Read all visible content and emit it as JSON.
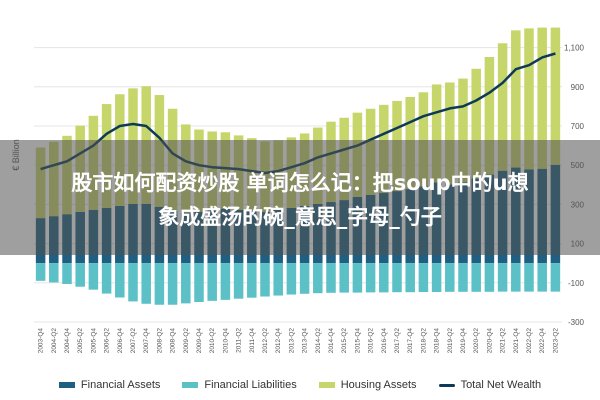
{
  "overlay": {
    "line1": "股市如何配资炒股 单词怎么记：把soup中的u想",
    "line2": "象成盛汤的碗_意思_字母_勺子"
  },
  "colors": {
    "financial_assets": "#1f5f82",
    "financial_liabilities": "#5cc0c7",
    "housing_assets": "#c7d66b",
    "total_net_wealth": "#0f3a57",
    "grid": "#e5e5e5",
    "text": "#555555"
  },
  "chart_data": {
    "type": "bar",
    "ylabel": "€ Billion",
    "ylim": [
      -300,
      1200
    ],
    "yticks": [
      -300,
      -100,
      100,
      300,
      500,
      700,
      900,
      1100
    ],
    "ytick_labels": [
      "-300",
      "-100",
      "100",
      "300",
      "500",
      "700",
      "900",
      "1,100"
    ],
    "xtick_labels": [
      "2003-Q4",
      "2004-Q2",
      "2004-Q4",
      "2005-Q2",
      "2005-Q4",
      "2006-Q2",
      "2006-Q4",
      "2007-Q2",
      "2007-Q4",
      "2008-Q2",
      "2008-Q4",
      "2009-Q2",
      "2009-Q4",
      "2010-Q2",
      "2010-Q4",
      "2011-Q2",
      "2011-Q4",
      "2012-Q2",
      "2012-Q4",
      "2013-Q2",
      "2013-Q4",
      "2014-Q2",
      "2014-Q4",
      "2015-Q2",
      "2015-Q4",
      "2016-Q2",
      "2016-Q4",
      "2017-Q2",
      "2017-Q4",
      "2018-Q2",
      "2018-Q4",
      "2019-Q2",
      "2019-Q4",
      "2020-Q2",
      "2020-Q4",
      "2021-Q2",
      "2021-Q4",
      "2022-Q2",
      "2022-Q4",
      "2023-Q2"
    ],
    "series": [
      {
        "name": "Financial Assets",
        "kind": "bar",
        "values": [
          230,
          240,
          250,
          262,
          272,
          282,
          292,
          302,
          303,
          288,
          268,
          258,
          262,
          272,
          278,
          272,
          268,
          262,
          272,
          282,
          292,
          302,
          312,
          322,
          338,
          348,
          358,
          368,
          378,
          392,
          412,
          402,
          412,
          432,
          452,
          472,
          488,
          478,
          482,
          502
        ]
      },
      {
        "name": "Financial Liabilities",
        "kind": "bar",
        "values": [
          -90,
          -98,
          -106,
          -120,
          -135,
          -155,
          -175,
          -195,
          -207,
          -212,
          -212,
          -205,
          -198,
          -192,
          -187,
          -181,
          -176,
          -170,
          -165,
          -160,
          -156,
          -153,
          -151,
          -150,
          -150,
          -149,
          -149,
          -148,
          -148,
          -147,
          -147,
          -146,
          -146,
          -146,
          -146,
          -145,
          -145,
          -145,
          -145,
          -145
        ]
      },
      {
        "name": "Housing Assets",
        "kind": "bar",
        "values": [
          360,
          380,
          400,
          440,
          480,
          530,
          570,
          590,
          600,
          570,
          520,
          450,
          420,
          400,
          390,
          380,
          370,
          360,
          355,
          360,
          370,
          390,
          410,
          420,
          430,
          440,
          450,
          460,
          470,
          480,
          500,
          520,
          530,
          560,
          600,
          650,
          700,
          720,
          720,
          700
        ]
      },
      {
        "name": "Total Net Wealth",
        "kind": "line",
        "values": [
          480,
          500,
          520,
          560,
          600,
          660,
          700,
          710,
          700,
          640,
          560,
          520,
          500,
          490,
          485,
          480,
          470,
          460,
          470,
          490,
          510,
          540,
          560,
          580,
          600,
          630,
          660,
          690,
          720,
          750,
          770,
          790,
          800,
          830,
          870,
          920,
          990,
          1010,
          1050,
          1070
        ]
      }
    ],
    "legend_position": "bottom",
    "grid": true
  },
  "legend": {
    "items": [
      {
        "label": "Financial Assets",
        "type": "bar"
      },
      {
        "label": "Financial Liabilities",
        "type": "bar"
      },
      {
        "label": "Housing Assets",
        "type": "bar"
      },
      {
        "label": "Total Net Wealth",
        "type": "line"
      }
    ]
  }
}
